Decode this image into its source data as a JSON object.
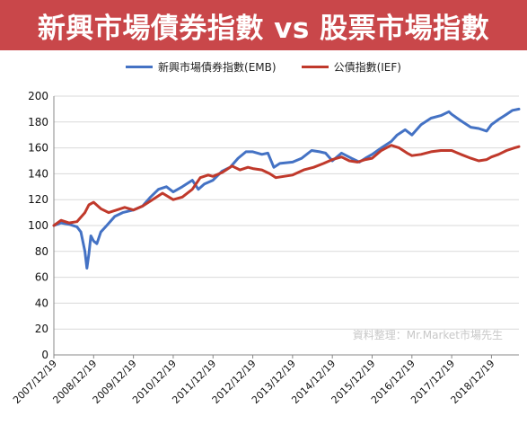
{
  "header": {
    "title": "新興市場債券指數 vs 股票市場指數"
  },
  "source_note": "資料整理：Mr.Market市場先生",
  "colors": {
    "banner": "#c9474a",
    "emb": "#4472c4",
    "ief": "#c0392b",
    "grid": "#d9d9d9"
  },
  "chart_data": {
    "type": "line",
    "ylim": [
      0,
      200
    ],
    "yticks": [
      0,
      20,
      40,
      60,
      80,
      100,
      120,
      140,
      160,
      180,
      200
    ],
    "xlim": [
      2007.97,
      2019.66
    ],
    "xticks": [
      {
        "label": "2007/12/19",
        "x": 2007.97
      },
      {
        "label": "2008/12/19",
        "x": 2008.97
      },
      {
        "label": "2009/12/19",
        "x": 2009.97
      },
      {
        "label": "2010/12/19",
        "x": 2010.97
      },
      {
        "label": "2011/12/19",
        "x": 2011.97
      },
      {
        "label": "2012/12/19",
        "x": 2012.97
      },
      {
        "label": "2013/12/19",
        "x": 2013.97
      },
      {
        "label": "2014/12/19",
        "x": 2014.97
      },
      {
        "label": "2015/12/19",
        "x": 2015.97
      },
      {
        "label": "2016/12/19",
        "x": 2016.97
      },
      {
        "label": "2017/12/19",
        "x": 2017.97
      },
      {
        "label": "2018/12/19",
        "x": 2018.97
      }
    ],
    "series": [
      {
        "name": "新興市場債券指數(EMB)",
        "color": "#4472c4",
        "points": [
          [
            2007.97,
            100
          ],
          [
            2008.15,
            102
          ],
          [
            2008.35,
            101
          ],
          [
            2008.55,
            99
          ],
          [
            2008.65,
            95
          ],
          [
            2008.75,
            80
          ],
          [
            2008.8,
            67
          ],
          [
            2008.85,
            78
          ],
          [
            2008.9,
            92
          ],
          [
            2008.97,
            88
          ],
          [
            2009.05,
            86
          ],
          [
            2009.15,
            95
          ],
          [
            2009.3,
            100
          ],
          [
            2009.5,
            107
          ],
          [
            2009.7,
            110
          ],
          [
            2009.97,
            112
          ],
          [
            2010.2,
            115
          ],
          [
            2010.4,
            122
          ],
          [
            2010.6,
            128
          ],
          [
            2010.8,
            130
          ],
          [
            2010.97,
            126
          ],
          [
            2011.2,
            130
          ],
          [
            2011.45,
            135
          ],
          [
            2011.6,
            128
          ],
          [
            2011.75,
            132
          ],
          [
            2011.97,
            135
          ],
          [
            2012.2,
            142
          ],
          [
            2012.4,
            145
          ],
          [
            2012.6,
            152
          ],
          [
            2012.8,
            157
          ],
          [
            2012.97,
            157
          ],
          [
            2013.2,
            155
          ],
          [
            2013.35,
            156
          ],
          [
            2013.5,
            145
          ],
          [
            2013.65,
            148
          ],
          [
            2013.97,
            149
          ],
          [
            2014.2,
            152
          ],
          [
            2014.45,
            158
          ],
          [
            2014.65,
            157
          ],
          [
            2014.8,
            156
          ],
          [
            2014.97,
            150
          ],
          [
            2015.2,
            156
          ],
          [
            2015.45,
            152
          ],
          [
            2015.65,
            149
          ],
          [
            2015.8,
            152
          ],
          [
            2015.97,
            155
          ],
          [
            2016.2,
            160
          ],
          [
            2016.45,
            165
          ],
          [
            2016.6,
            170
          ],
          [
            2016.8,
            174
          ],
          [
            2016.97,
            170
          ],
          [
            2017.2,
            178
          ],
          [
            2017.45,
            183
          ],
          [
            2017.7,
            185
          ],
          [
            2017.9,
            188
          ],
          [
            2017.97,
            186
          ],
          [
            2018.2,
            181
          ],
          [
            2018.45,
            176
          ],
          [
            2018.65,
            175
          ],
          [
            2018.85,
            173
          ],
          [
            2018.97,
            178
          ],
          [
            2019.15,
            182
          ],
          [
            2019.35,
            186
          ],
          [
            2019.5,
            189
          ],
          [
            2019.66,
            190
          ]
        ]
      },
      {
        "name": "公債指數(IEF)",
        "color": "#c0392b",
        "points": [
          [
            2007.97,
            100
          ],
          [
            2008.15,
            104
          ],
          [
            2008.35,
            102
          ],
          [
            2008.55,
            103
          ],
          [
            2008.75,
            110
          ],
          [
            2008.85,
            116
          ],
          [
            2008.97,
            118
          ],
          [
            2009.15,
            113
          ],
          [
            2009.35,
            110
          ],
          [
            2009.55,
            112
          ],
          [
            2009.75,
            114
          ],
          [
            2009.97,
            112
          ],
          [
            2010.2,
            115
          ],
          [
            2010.45,
            120
          ],
          [
            2010.7,
            125
          ],
          [
            2010.97,
            120
          ],
          [
            2011.2,
            122
          ],
          [
            2011.45,
            128
          ],
          [
            2011.65,
            137
          ],
          [
            2011.85,
            139
          ],
          [
            2011.97,
            138
          ],
          [
            2012.2,
            141
          ],
          [
            2012.45,
            146
          ],
          [
            2012.65,
            143
          ],
          [
            2012.85,
            145
          ],
          [
            2012.97,
            144
          ],
          [
            2013.2,
            143
          ],
          [
            2013.4,
            140
          ],
          [
            2013.55,
            137
          ],
          [
            2013.75,
            138
          ],
          [
            2013.97,
            139
          ],
          [
            2014.25,
            143
          ],
          [
            2014.5,
            145
          ],
          [
            2014.75,
            148
          ],
          [
            2014.97,
            151
          ],
          [
            2015.2,
            153
          ],
          [
            2015.4,
            150
          ],
          [
            2015.6,
            149
          ],
          [
            2015.8,
            151
          ],
          [
            2015.97,
            152
          ],
          [
            2016.2,
            158
          ],
          [
            2016.45,
            162
          ],
          [
            2016.65,
            160
          ],
          [
            2016.85,
            156
          ],
          [
            2016.97,
            154
          ],
          [
            2017.2,
            155
          ],
          [
            2017.45,
            157
          ],
          [
            2017.7,
            158
          ],
          [
            2017.97,
            158
          ],
          [
            2018.2,
            155
          ],
          [
            2018.45,
            152
          ],
          [
            2018.65,
            150
          ],
          [
            2018.85,
            151
          ],
          [
            2018.97,
            153
          ],
          [
            2019.15,
            155
          ],
          [
            2019.35,
            158
          ],
          [
            2019.55,
            160
          ],
          [
            2019.66,
            161
          ]
        ]
      }
    ]
  }
}
